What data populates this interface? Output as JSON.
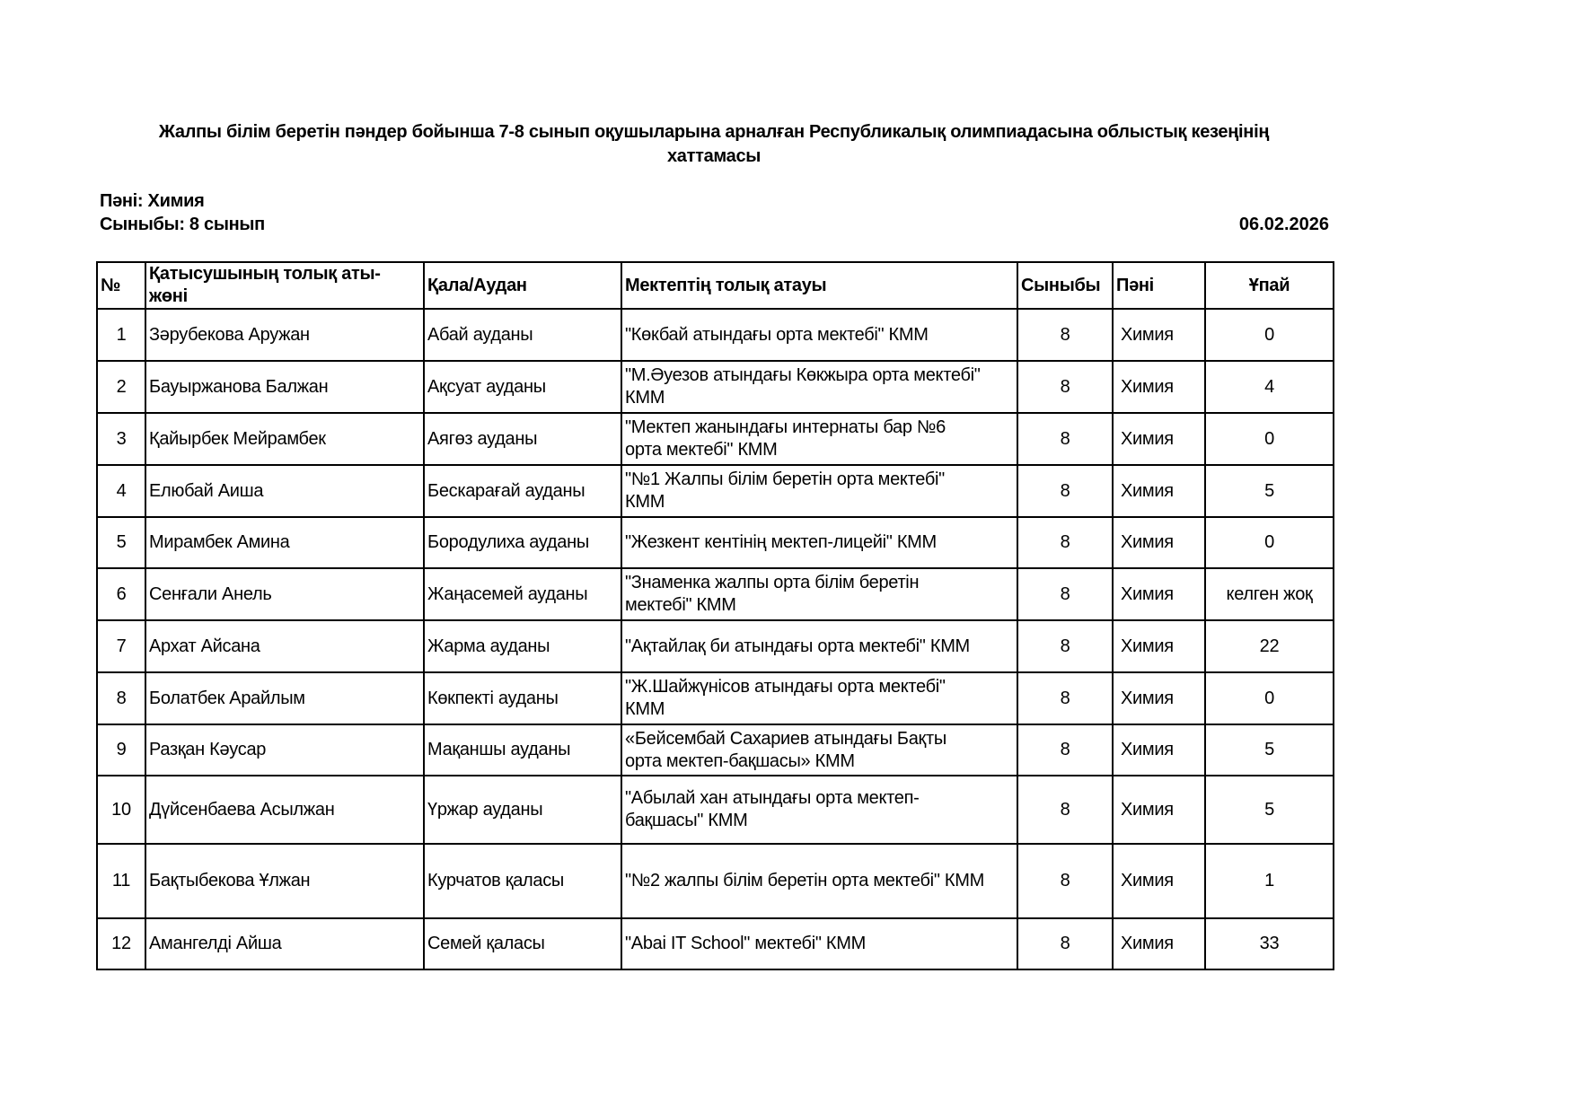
{
  "document": {
    "title": "Жалпы білім беретін пәндер бойынша 7-8 сынып оқушыларына арналған Республикалық олимпиадасына облыстық кезеңінің\nхаттамасы",
    "subject_line": "Пәні: Химия",
    "grade_line": "Сыныбы: 8 сынып",
    "date": "06.02.2026"
  },
  "table": {
    "headers": [
      "№",
      "Қатысушының толық аты-\nжөні",
      "Қала/Аудан",
      "Мектептің толық атауы",
      "Сыныбы",
      "Пәні",
      "Ұпай"
    ],
    "rows": [
      {
        "no": "1",
        "name": "Зәрубекова Аружан",
        "district": "Абай ауданы",
        "school": "\"Көкбай атындағы орта мектебі\" КММ",
        "grade": "8",
        "subject": "Химия",
        "score": "0"
      },
      {
        "no": "2",
        "name": "Бауыржанова Балжан",
        "district": "Ақсуат ауданы",
        "school": "\"М.Әуезов атындағы Көкжыра орта мектебі\"\nКММ",
        "grade": "8",
        "subject": "Химия",
        "score": "4"
      },
      {
        "no": "3",
        "name": "Қайырбек Мейрамбек",
        "district": " Аягөз ауданы",
        "school": "\"Мектеп жанындағы интернаты бар №6\nорта мектебі\" КММ",
        "grade": "8",
        "subject": "Химия",
        "score": "0"
      },
      {
        "no": "4",
        "name": "Елюбай Аиша",
        "district": "Бескарағай ауданы",
        "school": "\"№1 Жалпы білім беретін орта мектебі\"\nКММ",
        "grade": "8",
        "subject": "Химия",
        "score": "5"
      },
      {
        "no": "5",
        "name": "Мирамбек Амина",
        "district": "Бородулиха ауданы",
        "school": "\"Жезкент кентінің мектеп-лицейі\" КММ",
        "grade": "8",
        "subject": "Химия",
        "score": "0"
      },
      {
        "no": "6",
        "name": "Сенғали Анель",
        "district": "Жаңасемей ауданы",
        "school": "\"Знаменка жалпы орта білім беретін\nмектебі\" КММ",
        "grade": "8",
        "subject": "Химия",
        "score": "келген жоқ"
      },
      {
        "no": "7",
        "name": "Архат Айсана",
        "district": "Жарма ауданы",
        "school": "\"Ақтайлақ би атындағы орта мектебі\" КММ",
        "grade": "8",
        "subject": "Химия",
        "score": "22"
      },
      {
        "no": "8",
        "name": "Болатбек Арайлым",
        "district": "Көкпекті ауданы",
        "school": "\"Ж.Шайжүнісов атындағы орта мектебі\"\nКММ",
        "grade": "8",
        "subject": "Химия",
        "score": "0"
      },
      {
        "no": "9",
        "name": "Разқан Кәусар",
        "district": "Мақаншы ауданы",
        "school": "«Бейсембай Сахариев атындағы Бақты\nорта мектеп-бақшасы» КММ",
        "grade": "8",
        "subject": "Химия",
        "score": "5"
      },
      {
        "no": "10",
        "name": "Дүйсенбаева Асылжан",
        "district": "Үржар ауданы",
        "school": "\"Абылай хан атындағы орта мектеп-\nбақшасы\" КММ",
        "grade": "8",
        "subject": "Химия",
        "score": "5"
      },
      {
        "no": "11",
        "name": "Бақтыбекова Ұлжан",
        "district": "Курчатов қаласы",
        "school": "\"№2 жалпы білім беретін орта мектебі\" КММ",
        "grade": "8",
        "subject": "Химия",
        "score": "1"
      },
      {
        "no": "12",
        "name": "Амангелді Айша",
        "district": "Семей қаласы",
        "school": "\"Abai IT School\" мектебі\" КММ",
        "grade": "8",
        "subject": "Химия",
        "score": "33"
      }
    ]
  }
}
